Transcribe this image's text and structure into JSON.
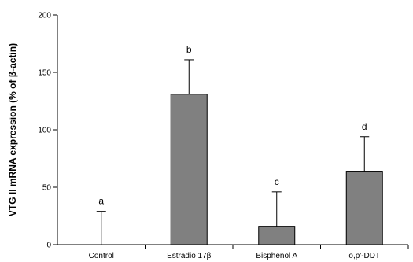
{
  "chart_data": {
    "type": "bar",
    "title": "",
    "xlabel": "",
    "ylabel": "VTG II mRNA expression (% of β-actin)",
    "ylim": [
      0,
      200
    ],
    "yticks": [
      0,
      50,
      100,
      150,
      200
    ],
    "categories": [
      "Control",
      "Estradio 17β",
      "Bisphenol A",
      "o,p'-DDT"
    ],
    "values": [
      0,
      131,
      16,
      64
    ],
    "error_upper": [
      29,
      30,
      30,
      30
    ],
    "significance_letters": [
      "a",
      "b",
      "c",
      "d"
    ],
    "bar_color": "#808080",
    "grid": false,
    "legend": "none"
  }
}
